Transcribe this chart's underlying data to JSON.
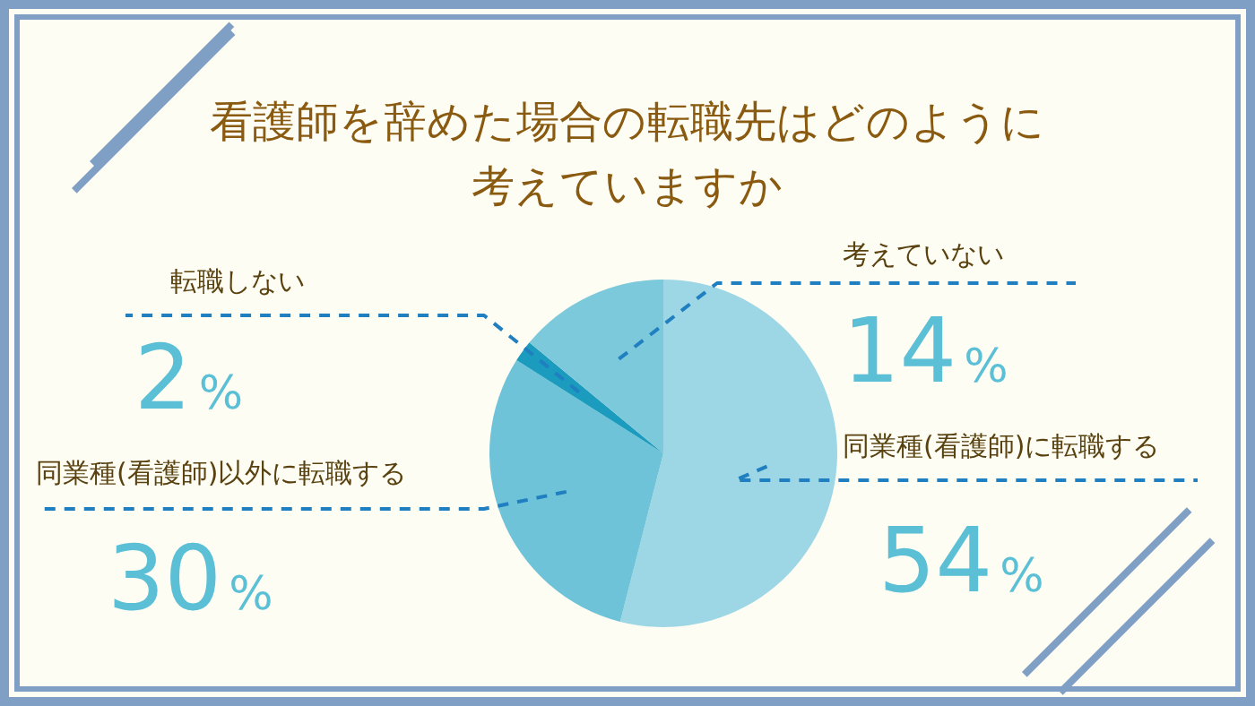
{
  "chart_data": {
    "type": "pie",
    "title": "看護師を辞めた場合の転職先はどのように考えていますか",
    "categories": [
      "同業種(看護師)に転職する",
      "同業種(看護師)以外に転職する",
      "転職しない",
      "考えていない"
    ],
    "values": [
      54,
      30,
      2,
      14
    ],
    "value_labels": [
      "54%",
      "30%",
      "2%",
      "14%"
    ],
    "colors": [
      "#9dd6e4",
      "#6ec3d8",
      "#1b9bbd",
      "#7dc9dc"
    ]
  }
}
